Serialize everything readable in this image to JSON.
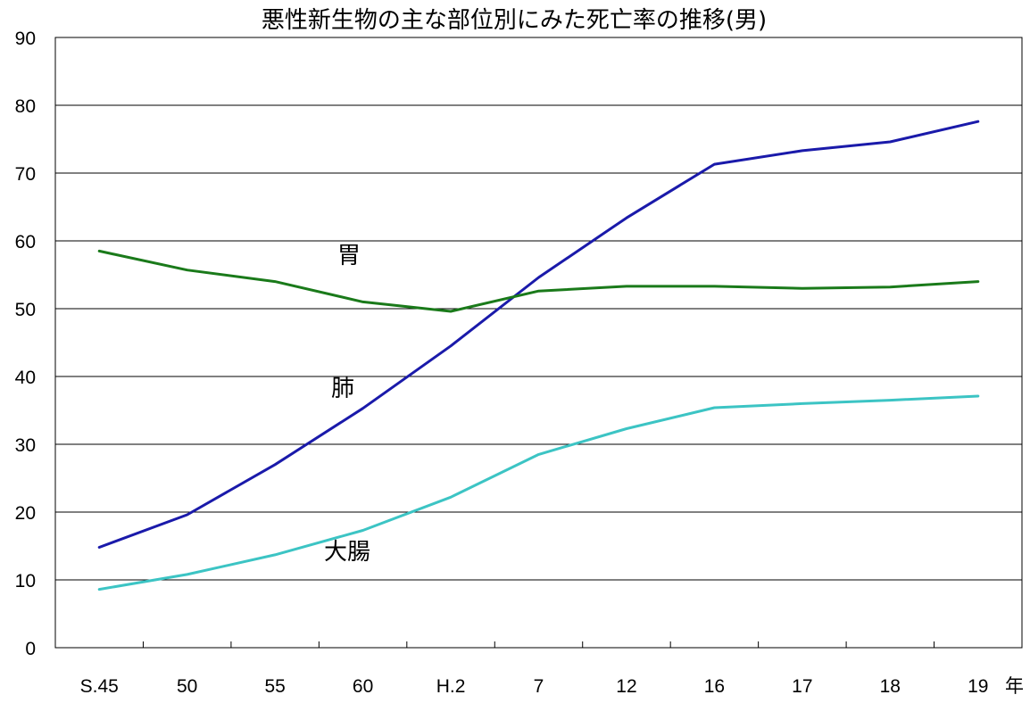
{
  "chart_data": {
    "type": "line",
    "title": "悪性新生物の主な部位別にみた死亡率の推移(男)",
    "xlabel": "",
    "ylabel": "",
    "x_unit": "年",
    "categories": [
      "S.45",
      "50",
      "55",
      "60",
      "H.2",
      "7",
      "12",
      "16",
      "17",
      "18",
      "19"
    ],
    "ylim": [
      0,
      90
    ],
    "yticks": [
      "0",
      "10",
      "20",
      "30",
      "40",
      "50",
      "60",
      "70",
      "80",
      "90"
    ],
    "grid": true,
    "series": [
      {
        "name": "肺",
        "color": "#1a1aaa",
        "values": [
          14.8,
          19.6,
          27.0,
          35.3,
          44.5,
          54.6,
          63.4,
          71.3,
          73.3,
          74.6,
          77.6
        ]
      },
      {
        "name": "胃",
        "color": "#1a7a1a",
        "values": [
          58.5,
          55.7,
          54.0,
          51.0,
          49.6,
          52.6,
          53.3,
          53.3,
          53.0,
          53.2,
          54.0
        ]
      },
      {
        "name": "大腸",
        "color": "#3cc4c4",
        "values": [
          8.6,
          10.8,
          13.7,
          17.3,
          22.2,
          28.5,
          32.3,
          35.4,
          36.0,
          36.5,
          37.1
        ]
      }
    ]
  }
}
